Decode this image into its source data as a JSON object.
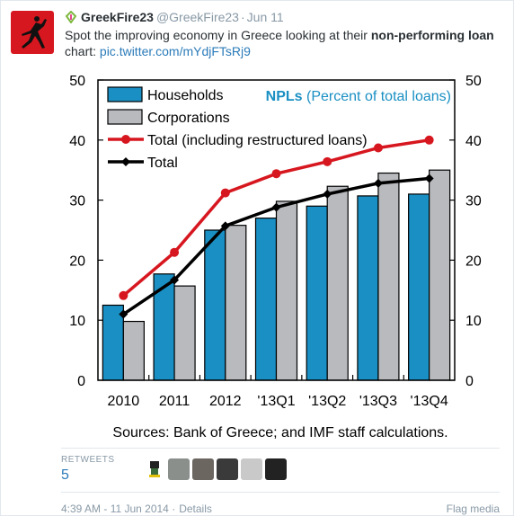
{
  "tweet": {
    "author_name": "GreekFire23",
    "author_handle": "@GreekFire23",
    "separator": "·",
    "date": "Jun 11",
    "text_prefix": "Spot the improving economy in Greece looking at their ",
    "text_bold": "non-performing loan",
    "text_mid": " chart: ",
    "link": "pic.twitter.com/mYdjFTsRj9",
    "retweets_label": "RETWEETS",
    "retweets_count": "5",
    "timestamp": "4:39 AM - 11 Jun 2014",
    "timestamp_sep": "·",
    "details": "Details",
    "flag_media": "Flag media"
  },
  "colors": {
    "avatar_bg": "#d7171f",
    "households": "#1a8fc3",
    "corporations": "#b8babd",
    "restructured": "#d7171f",
    "total": "#000000",
    "title_npl": "#1a8fc3"
  },
  "chart_data": {
    "type": "bar",
    "title_bold": "NPLs",
    "title_rest": " (Percent of total loans)",
    "categories": [
      "2010",
      "2011",
      "2012",
      "'13Q1",
      "'13Q2",
      "'13Q3",
      "'13Q4"
    ],
    "series": [
      {
        "name": "Households",
        "kind": "bar",
        "values": [
          12.5,
          17.7,
          25.0,
          27.0,
          29.0,
          30.7,
          31.0
        ]
      },
      {
        "name": "Corporations",
        "kind": "bar",
        "values": [
          9.8,
          15.7,
          25.8,
          29.8,
          32.3,
          34.5,
          35.0
        ]
      },
      {
        "name": "Total (including restructured loans)",
        "kind": "line",
        "values": [
          14.1,
          21.3,
          31.2,
          34.4,
          36.4,
          38.7,
          40.0
        ]
      },
      {
        "name": "Total",
        "kind": "line",
        "values": [
          11.0,
          16.7,
          25.7,
          28.8,
          31.0,
          32.8,
          33.6
        ]
      }
    ],
    "ylim": [
      0,
      50
    ],
    "yticks": [
      0,
      10,
      20,
      30,
      40,
      50
    ],
    "grid": false,
    "legend_position": "top-left",
    "source": "Sources: Bank of Greece; and IMF staff calculations."
  }
}
